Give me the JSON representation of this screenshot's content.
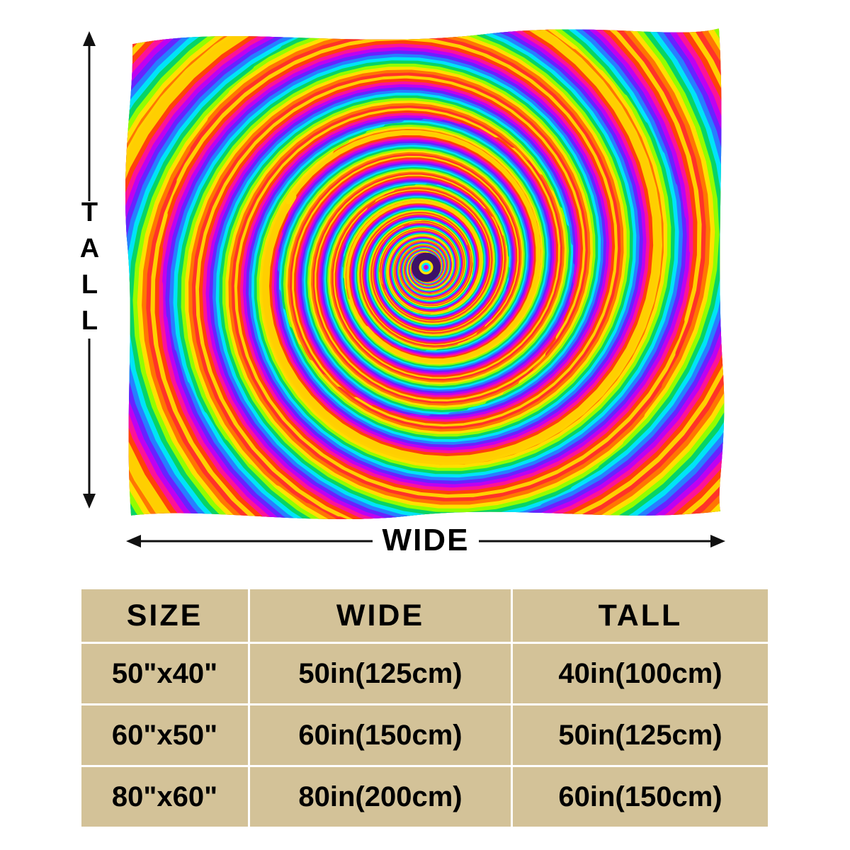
{
  "dimension_labels": {
    "tall": "TALL",
    "wide": "WIDE"
  },
  "size_table": {
    "headers": [
      "SIZE",
      "WIDE",
      "TALL"
    ],
    "rows": [
      [
        "50\"x40\"",
        "50in(125cm)",
        "40in(100cm)"
      ],
      [
        "60\"x50\"",
        "60in(150cm)",
        "50in(125cm)"
      ],
      [
        "80\"x60\"",
        "80in(200cm)",
        "60in(150cm)"
      ]
    ]
  },
  "colors": {
    "table_cell_bg": "#d3c298",
    "grid_line": "#ffffff",
    "text": "#000000",
    "arrow": "#111111",
    "blanket_background": "#5a1d86"
  },
  "blanket": {
    "image_label": "rainbow-spiral-fractal-blanket",
    "palette": [
      "#ff2a2a",
      "#ff7a00",
      "#ffe600",
      "#8cff00",
      "#00d26a",
      "#00e5ff",
      "#2979ff",
      "#6a1fff",
      "#c400f0",
      "#ff1493",
      "#ff4500",
      "#ffd700"
    ]
  }
}
